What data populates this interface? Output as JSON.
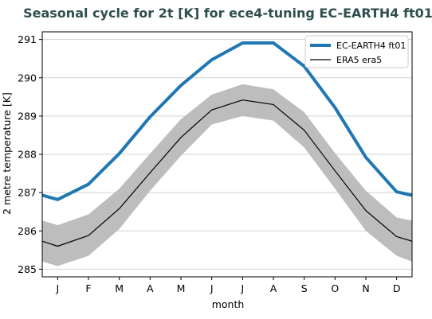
{
  "chart_data": {
    "type": "line",
    "title": "Seasonal cycle for 2t [K] for ece4-tuning EC-EARTH4 ft01",
    "xlabel": "month",
    "ylabel": "2 metre temperature [K]",
    "categories": [
      "J",
      "F",
      "M",
      "A",
      "M",
      "J",
      "J",
      "A",
      "S",
      "O",
      "N",
      "D"
    ],
    "ylim": [
      284.8,
      291.2
    ],
    "yticks": [
      285,
      286,
      287,
      288,
      289,
      290,
      291
    ],
    "grid": true,
    "legend_position": "top-right",
    "series": [
      {
        "name": "EC-EARTH4 ft01",
        "color": "#1f77b4",
        "values": [
          286.82,
          287.22,
          288.02,
          288.98,
          289.8,
          290.47,
          290.91,
          290.91,
          290.3,
          289.22,
          287.92,
          287.02
        ],
        "edge_values": {
          "left": 286.93,
          "right": 286.93
        }
      },
      {
        "name": "ERA5 era5",
        "color": "#000000",
        "values": [
          285.6,
          285.88,
          286.58,
          287.52,
          288.44,
          289.16,
          289.42,
          289.3,
          288.63,
          287.57,
          286.53,
          285.85
        ],
        "edge_values": {
          "left": 285.73,
          "right": 285.73
        },
        "band": {
          "color": "#bdbdbd",
          "upper": [
            286.15,
            286.43,
            287.1,
            288.02,
            288.92,
            289.56,
            289.83,
            289.7,
            289.1,
            288.03,
            287.05,
            286.35
          ],
          "lower": [
            285.08,
            285.35,
            286.05,
            287.05,
            287.96,
            288.78,
            289.0,
            288.88,
            288.18,
            287.1,
            286.0,
            285.35
          ],
          "upper_edges": {
            "left": 286.27,
            "right": 286.27
          },
          "lower_edges": {
            "left": 285.2,
            "right": 285.2
          }
        }
      }
    ]
  }
}
